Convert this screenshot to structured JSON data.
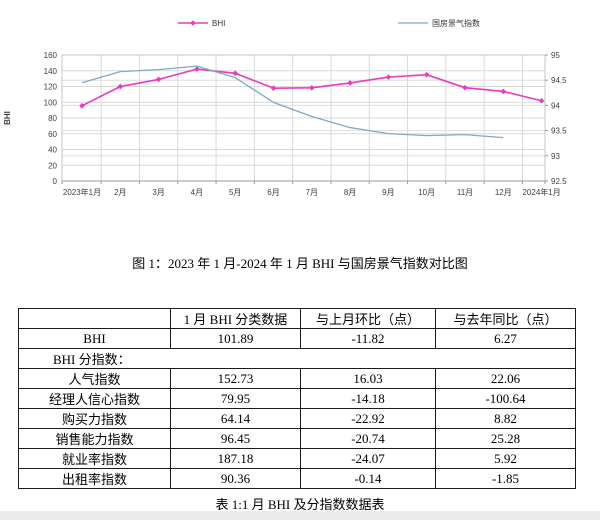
{
  "chart": {
    "legend": [
      {
        "label": "BHI"
      },
      {
        "label": "国房景气指数"
      }
    ],
    "left_axis_title": "BHI"
  },
  "chart_data": {
    "type": "line",
    "title": "",
    "categories": [
      "2023年1月",
      "2月",
      "3月",
      "4月",
      "5月",
      "6月",
      "7月",
      "8月",
      "9月",
      "10月",
      "11月",
      "12月",
      "2024年1月"
    ],
    "series": [
      {
        "name": "BHI",
        "axis": "left",
        "color": "#e83bbf",
        "marker": "diamond",
        "values": [
          95.62,
          120.0,
          129.0,
          142.1,
          136.8,
          117.9,
          118.3,
          124.5,
          131.9,
          135.0,
          118.5,
          113.71,
          101.89
        ]
      },
      {
        "name": "国房景气指数",
        "axis": "right",
        "color": "#7fa8c9",
        "marker": "none",
        "values": [
          94.45,
          94.67,
          94.71,
          94.78,
          94.55,
          94.06,
          93.78,
          93.56,
          93.44,
          93.4,
          93.42,
          93.36
        ]
      }
    ],
    "left_axis": {
      "label": "BHI",
      "min": 0,
      "max": 160,
      "tick_step": 20
    },
    "right_axis": {
      "min": 92.5,
      "max": 95,
      "tick_step": 0.5
    },
    "grid": true,
    "legend_position": "top"
  },
  "figure_caption": "图 1：2023 年 1 月-2024 年 1 月 BHI 与国房景气指数对比图",
  "table": {
    "headers": [
      "",
      "1 月 BHI 分类数据",
      "与上月环比（点）",
      "与去年同比（点）"
    ],
    "rows": [
      {
        "label": "BHI",
        "values": [
          "101.89",
          "-11.82",
          "6.27"
        ]
      },
      {
        "label": "BHI 分指数：",
        "section": true,
        "values": []
      },
      {
        "label": "人气指数",
        "values": [
          "152.73",
          "16.03",
          "22.06"
        ]
      },
      {
        "label": "经理人信心指数",
        "values": [
          "79.95",
          "-14.18",
          "-100.64"
        ]
      },
      {
        "label": "购买力指数",
        "values": [
          "64.14",
          "-22.92",
          "8.82"
        ]
      },
      {
        "label": "销售能力指数",
        "values": [
          "96.45",
          "-20.74",
          "25.28"
        ]
      },
      {
        "label": "就业率指数",
        "values": [
          "187.18",
          "-24.07",
          "5.92"
        ]
      },
      {
        "label": "出租率指数",
        "values": [
          "90.36",
          "-0.14",
          "-1.85"
        ]
      }
    ]
  },
  "table_caption": "表 1:1 月 BHI 及分指数数据表"
}
